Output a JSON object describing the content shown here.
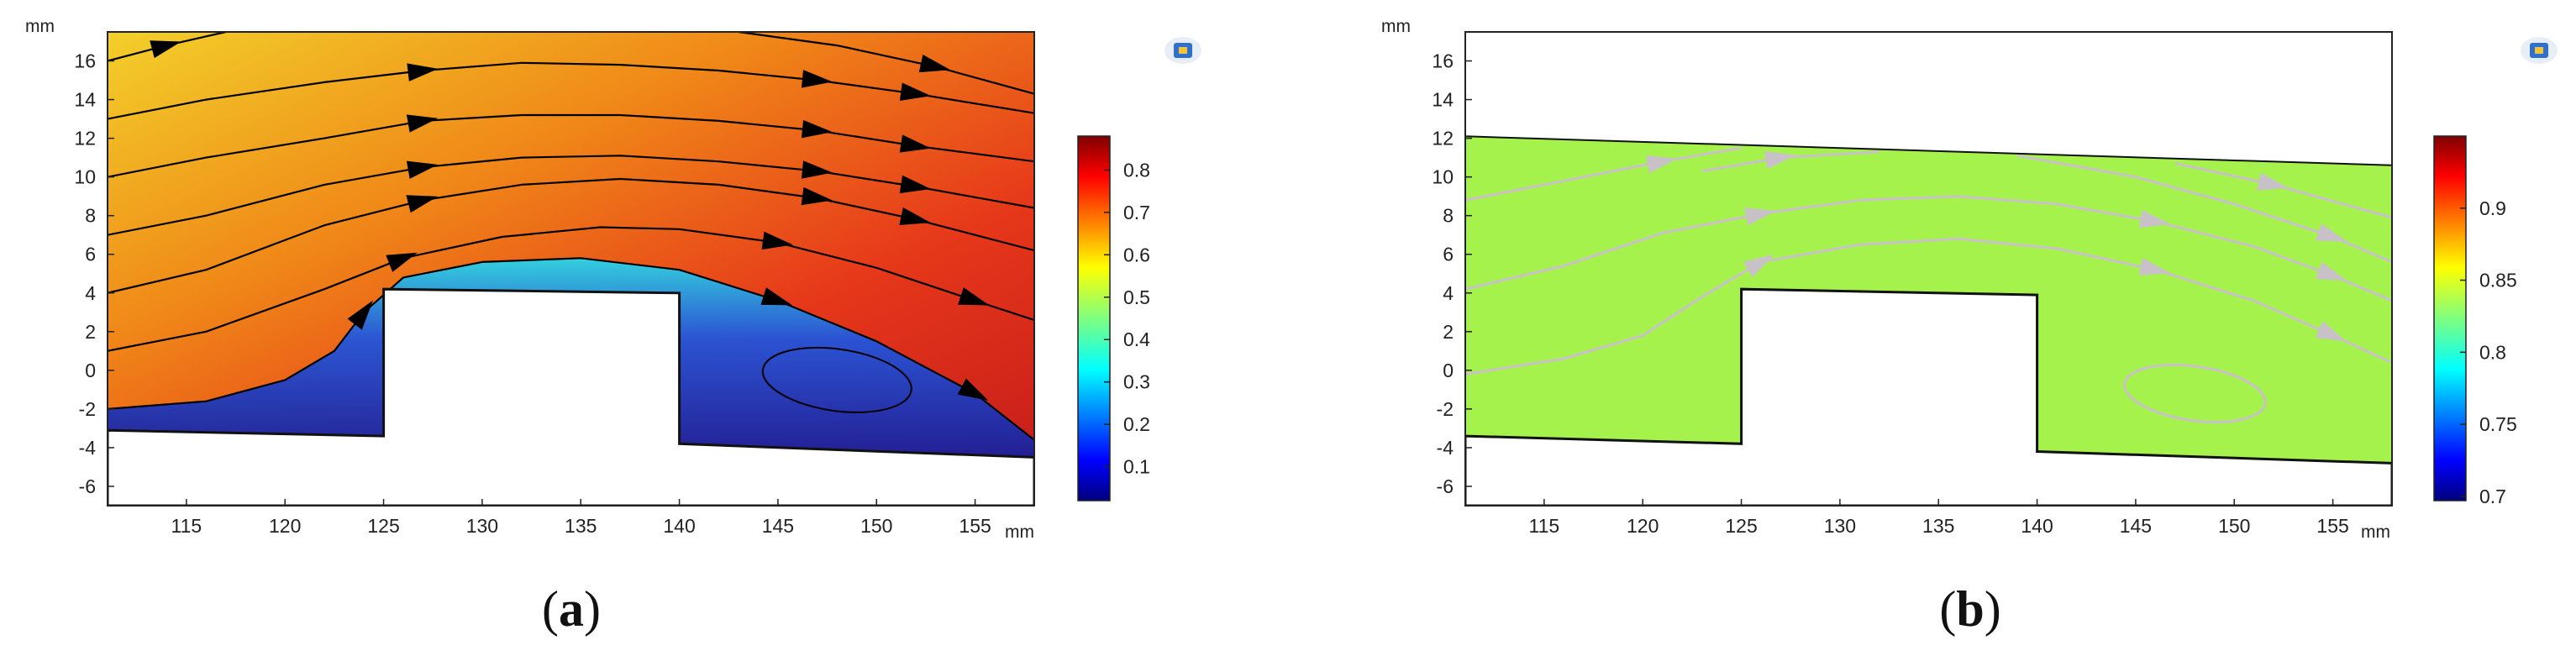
{
  "chart_data": [
    {
      "type": "heatmap",
      "panel_label": "(a)",
      "bold_letter": "a",
      "x_unit": "mm",
      "y_unit": "mm",
      "xlim": [
        111,
        158
      ],
      "ylim": [
        -7,
        17.5
      ],
      "x_ticks": [
        115,
        120,
        125,
        130,
        135,
        140,
        145,
        150,
        155
      ],
      "y_ticks": [
        16,
        14,
        12,
        10,
        8,
        6,
        4,
        2,
        0,
        -2,
        -4,
        -6
      ],
      "colorbar": {
        "ticks": [
          0.1,
          0.2,
          0.3,
          0.4,
          0.5,
          0.6,
          0.7,
          0.8
        ],
        "range": [
          0.02,
          0.88
        ],
        "colormap": "jet"
      },
      "geometry": {
        "top_boundary": [
          [
            111,
            17.5
          ],
          [
            158,
            17.5
          ]
        ],
        "bottom_boundary": [
          [
            111,
            -3.1
          ],
          [
            125,
            -3.4
          ],
          [
            125,
            4.2
          ],
          [
            140,
            4.0
          ],
          [
            140,
            -3.8
          ],
          [
            158,
            -4.5
          ]
        ]
      },
      "streamlines": [
        [
          [
            111,
            -2.0
          ],
          [
            116,
            -1.6
          ],
          [
            120,
            -0.5
          ],
          [
            122.5,
            1.0
          ],
          [
            124,
            3.0
          ],
          [
            126,
            4.8
          ],
          [
            130,
            5.6
          ],
          [
            135,
            5.8
          ],
          [
            140,
            5.2
          ],
          [
            145,
            3.6
          ],
          [
            150,
            1.5
          ],
          [
            155,
            -1.2
          ],
          [
            158,
            -3.6
          ]
        ],
        [
          [
            111,
            1.0
          ],
          [
            116,
            2.0
          ],
          [
            122,
            4.2
          ],
          [
            126,
            5.8
          ],
          [
            131,
            6.9
          ],
          [
            136,
            7.4
          ],
          [
            140,
            7.3
          ],
          [
            145,
            6.6
          ],
          [
            150,
            5.3
          ],
          [
            155,
            3.6
          ],
          [
            158,
            2.6
          ]
        ],
        [
          [
            111,
            4.0
          ],
          [
            116,
            5.2
          ],
          [
            122,
            7.5
          ],
          [
            127,
            8.8
          ],
          [
            132,
            9.6
          ],
          [
            137,
            9.9
          ],
          [
            142,
            9.6
          ],
          [
            147,
            8.9
          ],
          [
            152,
            7.8
          ],
          [
            158,
            6.2
          ]
        ],
        [
          [
            111,
            7.0
          ],
          [
            116,
            8.0
          ],
          [
            122,
            9.6
          ],
          [
            127,
            10.5
          ],
          [
            132,
            11.0
          ],
          [
            137,
            11.1
          ],
          [
            142,
            10.8
          ],
          [
            147,
            10.3
          ],
          [
            152,
            9.5
          ],
          [
            158,
            8.4
          ]
        ],
        [
          [
            111,
            10.0
          ],
          [
            116,
            11.0
          ],
          [
            122,
            12.0
          ],
          [
            127,
            12.9
          ],
          [
            132,
            13.2
          ],
          [
            137,
            13.2
          ],
          [
            142,
            12.9
          ],
          [
            147,
            12.4
          ],
          [
            152,
            11.6
          ],
          [
            158,
            10.8
          ]
        ],
        [
          [
            111,
            13.0
          ],
          [
            116,
            14.0
          ],
          [
            122,
            14.9
          ],
          [
            127,
            15.5
          ],
          [
            132,
            15.9
          ],
          [
            137,
            15.8
          ],
          [
            142,
            15.5
          ],
          [
            147,
            15.0
          ],
          [
            152,
            14.3
          ],
          [
            158,
            13.3
          ]
        ],
        [
          [
            111,
            16.0
          ],
          [
            114,
            16.8
          ],
          [
            117,
            17.5
          ]
        ],
        [
          [
            143,
            17.5
          ],
          [
            148,
            16.8
          ],
          [
            153,
            15.7
          ],
          [
            158,
            14.3
          ]
        ]
      ],
      "vortex": {
        "cx": 148,
        "cy": -0.5,
        "rx": 3.8,
        "ry": 1.6,
        "angle": -8
      }
    },
    {
      "type": "heatmap",
      "panel_label": "(b)",
      "bold_letter": "b",
      "x_unit": "mm",
      "y_unit": "mm",
      "xlim": [
        111,
        158
      ],
      "ylim": [
        -7,
        17.5
      ],
      "x_ticks": [
        115,
        120,
        125,
        130,
        135,
        140,
        145,
        150,
        155
      ],
      "y_ticks": [
        16,
        14,
        12,
        10,
        8,
        6,
        4,
        2,
        0,
        -2,
        -4,
        -6
      ],
      "colorbar": {
        "ticks": [
          0.7,
          0.75,
          0.8,
          0.85,
          0.9
        ],
        "range": [
          0.697,
          0.95
        ],
        "colormap": "jet"
      },
      "field_value": 0.845,
      "geometry": {
        "top_boundary": [
          [
            111,
            12.1
          ],
          [
            158,
            10.6
          ]
        ],
        "bottom_boundary": [
          [
            111,
            -3.4
          ],
          [
            125,
            -3.8
          ],
          [
            125,
            4.2
          ],
          [
            140,
            3.9
          ],
          [
            140,
            -4.2
          ],
          [
            158,
            -4.8
          ]
        ]
      },
      "streamlines": [
        [
          [
            111,
            -0.2
          ],
          [
            116,
            0.6
          ],
          [
            120,
            1.8
          ],
          [
            123,
            3.8
          ],
          [
            126,
            5.6
          ],
          [
            131,
            6.5
          ],
          [
            136,
            6.8
          ],
          [
            141,
            6.3
          ],
          [
            146,
            5.2
          ],
          [
            151,
            3.6
          ],
          [
            155,
            1.8
          ],
          [
            158,
            0.4
          ]
        ],
        [
          [
            111,
            4.2
          ],
          [
            116,
            5.4
          ],
          [
            121,
            7.1
          ],
          [
            126,
            8.1
          ],
          [
            131,
            8.8
          ],
          [
            136,
            9.0
          ],
          [
            141,
            8.6
          ],
          [
            146,
            7.7
          ],
          [
            151,
            6.4
          ],
          [
            155,
            4.9
          ],
          [
            158,
            3.6
          ]
        ],
        [
          [
            111,
            8.8
          ],
          [
            116,
            9.8
          ],
          [
            121,
            10.8
          ],
          [
            125,
            11.5
          ]
        ],
        [
          [
            123,
            10.3
          ],
          [
            127,
            11.0
          ],
          [
            132,
            11.3
          ]
        ],
        [
          [
            139,
            11.1
          ],
          [
            145,
            10.0
          ],
          [
            150,
            8.6
          ],
          [
            155,
            6.9
          ],
          [
            158,
            5.6
          ]
        ],
        [
          [
            147,
            10.7
          ],
          [
            152,
            9.6
          ],
          [
            158,
            7.9
          ]
        ]
      ],
      "vortex": {
        "cx": 148,
        "cy": -1.2,
        "rx": 3.6,
        "ry": 1.4,
        "angle": -8
      }
    }
  ]
}
